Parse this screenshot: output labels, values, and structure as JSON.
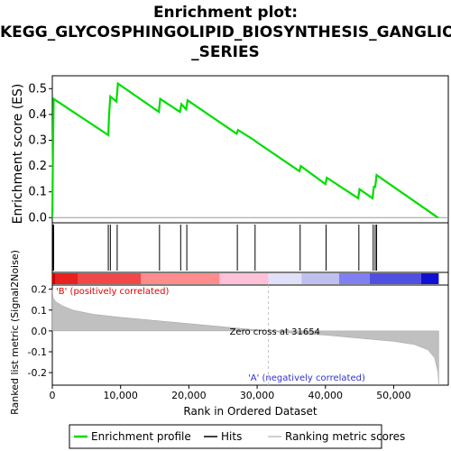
{
  "title_lines": [
    "Enrichment plot:",
    "KEGG_GLYCOSPHINGOLIPID_BIOSYNTHESIS_GANGLIO",
    "_SERIES"
  ],
  "colors": {
    "enrichment": "#00dd00",
    "hits": "#000000",
    "ranking": "#c0c0c0",
    "positive_bar": "#ff0000",
    "negative_bar": "#0000ff",
    "zero_cross_line": "#c0c0c0"
  },
  "chart_data": [
    {
      "type": "line",
      "name": "enrichment-profile",
      "ylabel": "Enrichment score (ES)",
      "xlim": [
        0,
        58000
      ],
      "ylim": [
        -0.02,
        0.55
      ],
      "yticks": [
        0.0,
        0.1,
        0.2,
        0.3,
        0.4,
        0.5
      ],
      "ytick_labels": [
        "0.0",
        "0.1",
        "0.2",
        "0.3",
        "0.4",
        "0.5"
      ],
      "series": [
        {
          "name": "Enrichment profile",
          "x": [
            0,
            100,
            200,
            8200,
            8300,
            8500,
            9400,
            9600,
            15600,
            15800,
            18700,
            18900,
            19600,
            19800,
            27000,
            27200,
            29600,
            29800,
            36200,
            36400,
            40000,
            40200,
            44800,
            45000,
            46900,
            47100,
            47300,
            47500,
            56500
          ],
          "y": [
            0.0,
            0.28,
            0.46,
            0.32,
            0.39,
            0.47,
            0.45,
            0.52,
            0.41,
            0.46,
            0.41,
            0.44,
            0.42,
            0.455,
            0.325,
            0.34,
            0.3,
            0.295,
            0.18,
            0.2,
            0.13,
            0.155,
            0.075,
            0.11,
            0.075,
            0.12,
            0.12,
            0.165,
            0.0
          ]
        }
      ]
    },
    {
      "type": "scatter",
      "name": "hits",
      "legend": "Hits",
      "x": [
        100,
        200,
        8200,
        8500,
        9500,
        15700,
        18800,
        19700,
        27100,
        29700,
        36300,
        40100,
        44900,
        47000,
        47300,
        47500
      ]
    },
    {
      "type": "heatmap",
      "name": "correlation-bar",
      "label_positive": "'B' (positively correlated)",
      "label_negative": "'A' (negatively correlated)",
      "segments": [
        {
          "from": 0,
          "to": 500,
          "color": "#cc0000"
        },
        {
          "from": 500,
          "to": 3800,
          "color": "#e82020"
        },
        {
          "from": 3800,
          "to": 13000,
          "color": "#f04848"
        },
        {
          "from": 13000,
          "to": 24500,
          "color": "#ff8c8c"
        },
        {
          "from": 24500,
          "to": 31654,
          "color": "#ffc0d8"
        },
        {
          "from": 31654,
          "to": 36500,
          "color": "#e0e0f8"
        },
        {
          "from": 36500,
          "to": 42000,
          "color": "#c0c0f0"
        },
        {
          "from": 42000,
          "to": 46500,
          "color": "#8080f0"
        },
        {
          "from": 46500,
          "to": 54000,
          "color": "#5050e0"
        },
        {
          "from": 54000,
          "to": 56600,
          "color": "#1010d0"
        }
      ]
    },
    {
      "type": "area",
      "name": "ranked-list-metric",
      "ylabel": "Ranked list metric (Signal2Noise)",
      "xlabel": "Rank in Ordered Dataset",
      "xlim": [
        0,
        58000
      ],
      "ylim": [
        -0.26,
        0.22
      ],
      "yticks": [
        -0.2,
        -0.1,
        0.0,
        0.1,
        0.2
      ],
      "ytick_labels": [
        "-0.2",
        "-0.1",
        "0.0",
        "0.1",
        "0.2"
      ],
      "xticks": [
        0,
        10000,
        20000,
        30000,
        40000,
        50000
      ],
      "xtick_labels": [
        "0",
        "10,000",
        "20,000",
        "30,000",
        "40,000",
        "50,000"
      ],
      "zero_cross": 31654,
      "zero_cross_label": "Zero cross at 31654",
      "series": [
        {
          "name": "Ranking metric scores",
          "x": [
            0,
            100,
            500,
            1500,
            3000,
            6000,
            10000,
            15000,
            20000,
            25000,
            31654,
            35000,
            40000,
            45000,
            50000,
            53000,
            55000,
            56000,
            56500,
            56600
          ],
          "y": [
            0.2,
            0.16,
            0.14,
            0.12,
            0.1,
            0.08,
            0.065,
            0.05,
            0.035,
            0.02,
            0.0,
            -0.01,
            -0.02,
            -0.035,
            -0.05,
            -0.065,
            -0.09,
            -0.13,
            -0.2,
            -0.26
          ]
        }
      ]
    }
  ],
  "legend": {
    "items": [
      "Enrichment profile",
      "Hits",
      "Ranking metric scores"
    ]
  }
}
